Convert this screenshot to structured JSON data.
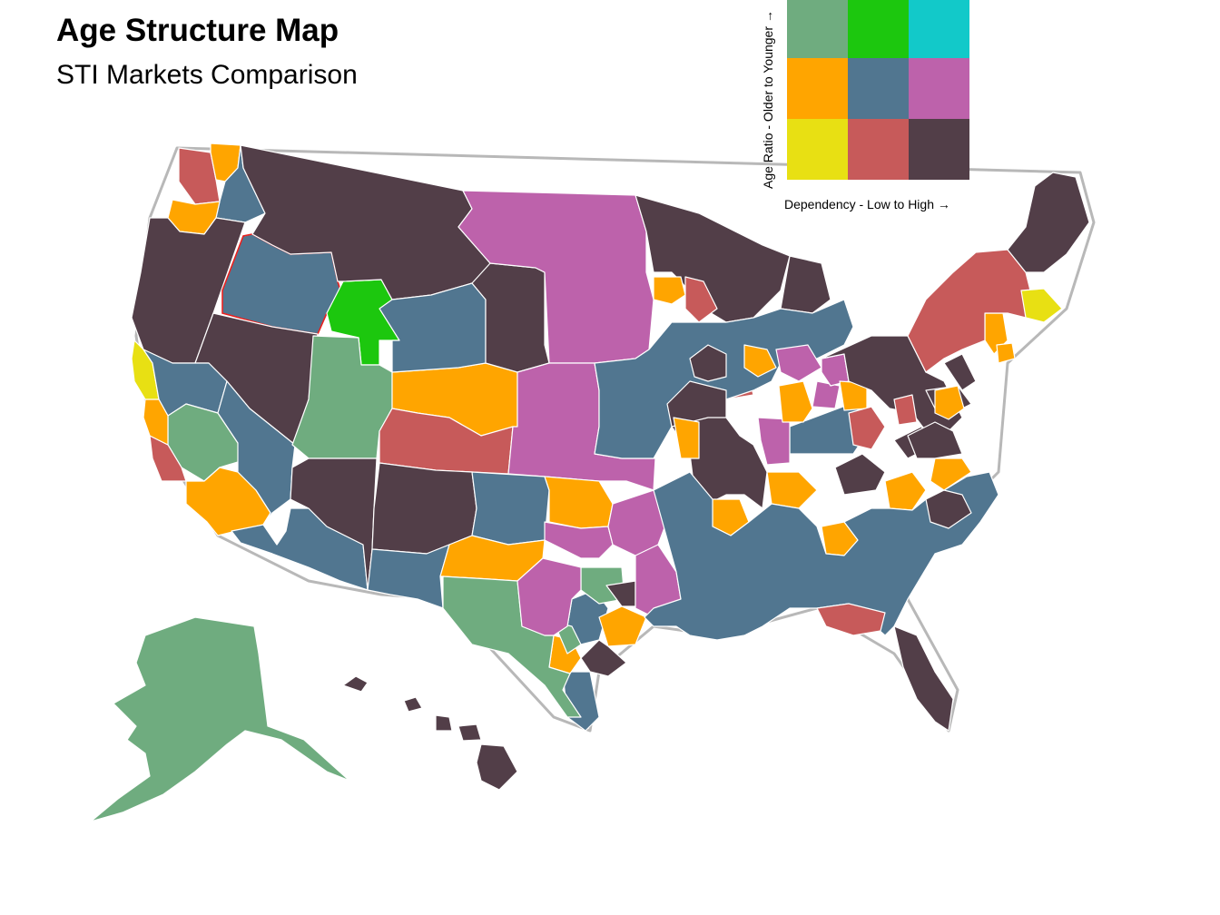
{
  "title": "Age Structure Map",
  "subtitle": "STI Markets Comparison",
  "legend": {
    "y_label": "Age Ratio - Older to Younger →",
    "x_label": "Dependency - Low to High →",
    "cells": [
      {
        "row": "top",
        "col": "low",
        "color": "#6fac7f"
      },
      {
        "row": "top",
        "col": "mid",
        "color": "#1cc70e"
      },
      {
        "row": "top",
        "col": "high",
        "color": "#12c9c9"
      },
      {
        "row": "middle",
        "col": "low",
        "color": "#ffa500"
      },
      {
        "row": "middle",
        "col": "mid",
        "color": "#517690"
      },
      {
        "row": "middle",
        "col": "high",
        "color": "#bd62ab"
      },
      {
        "row": "bottom",
        "col": "low",
        "color": "#e8e013"
      },
      {
        "row": "bottom",
        "col": "mid",
        "color": "#c75a5a"
      },
      {
        "row": "bottom",
        "col": "high",
        "color": "#523e48"
      }
    ]
  },
  "colors": {
    "green": "#6fac7f",
    "bright_green": "#1cc70e",
    "cyan": "#12c9c9",
    "orange": "#ffa500",
    "blue": "#517690",
    "purple": "#bd62ab",
    "yellow": "#e8e013",
    "red": "#c75a5a",
    "dark": "#523e48",
    "coast": "#b8b8b8",
    "highlight": "#e8201e"
  },
  "regions": [
    {
      "id": "wa-red",
      "color": "red"
    },
    {
      "id": "wa-orange",
      "color": "orange"
    },
    {
      "id": "wa-blue",
      "color": "blue"
    },
    {
      "id": "or-orange",
      "color": "orange"
    },
    {
      "id": "or-dark",
      "color": "dark"
    },
    {
      "id": "id-blue-highlight",
      "color": "blue"
    },
    {
      "id": "wy-bright",
      "color": "bright_green"
    },
    {
      "id": "mt-dark",
      "color": "dark"
    },
    {
      "id": "nv-dark",
      "color": "dark"
    },
    {
      "id": "ca-yellow",
      "color": "yellow"
    },
    {
      "id": "ca-blue",
      "color": "blue"
    },
    {
      "id": "ca-green",
      "color": "green"
    },
    {
      "id": "ca-red",
      "color": "red"
    },
    {
      "id": "ca-orange",
      "color": "orange"
    },
    {
      "id": "nv-blue",
      "color": "blue"
    },
    {
      "id": "ut-green",
      "color": "green"
    },
    {
      "id": "az-dark",
      "color": "dark"
    },
    {
      "id": "az-blue",
      "color": "blue"
    },
    {
      "id": "co-orange",
      "color": "orange"
    },
    {
      "id": "co-red",
      "color": "red"
    },
    {
      "id": "wy-blue",
      "color": "blue"
    },
    {
      "id": "nm-dark",
      "color": "dark"
    },
    {
      "id": "ne-dark",
      "color": "dark"
    },
    {
      "id": "dakotas-purple",
      "color": "purple"
    },
    {
      "id": "ks-purple",
      "color": "purple"
    },
    {
      "id": "ok-blue",
      "color": "blue"
    },
    {
      "id": "ok-orange",
      "color": "orange"
    },
    {
      "id": "tx-blue",
      "color": "blue"
    },
    {
      "id": "tx-orange",
      "color": "orange"
    },
    {
      "id": "tx-green",
      "color": "green"
    },
    {
      "id": "tx-purple",
      "color": "purple"
    },
    {
      "id": "tx-dark",
      "color": "dark"
    },
    {
      "id": "mn-dark",
      "color": "dark"
    },
    {
      "id": "midwest-blue",
      "color": "blue"
    },
    {
      "id": "wi-orange",
      "color": "orange"
    },
    {
      "id": "wi-red",
      "color": "red"
    },
    {
      "id": "ar-purple",
      "color": "purple"
    },
    {
      "id": "south-blue",
      "color": "blue"
    },
    {
      "id": "il-purple",
      "color": "purple"
    },
    {
      "id": "mo-dark",
      "color": "dark"
    },
    {
      "id": "in-orange",
      "color": "orange"
    },
    {
      "id": "oh-dark",
      "color": "dark"
    },
    {
      "id": "tn-orange",
      "color": "orange"
    },
    {
      "id": "ga-orange",
      "color": "orange"
    },
    {
      "id": "fl-red",
      "color": "red"
    },
    {
      "id": "fl-dark",
      "color": "dark"
    },
    {
      "id": "sc-dark",
      "color": "dark"
    },
    {
      "id": "nc-orange",
      "color": "orange"
    },
    {
      "id": "va-dark",
      "color": "dark"
    },
    {
      "id": "wv-red",
      "color": "red"
    },
    {
      "id": "md-orange",
      "color": "orange"
    },
    {
      "id": "ny-red",
      "color": "red"
    },
    {
      "id": "ne-us-dark",
      "color": "dark"
    },
    {
      "id": "ma-yellow",
      "color": "yellow"
    },
    {
      "id": "nj-orange",
      "color": "orange"
    },
    {
      "id": "ak-green",
      "color": "green"
    },
    {
      "id": "hi-dark",
      "color": "dark"
    }
  ]
}
